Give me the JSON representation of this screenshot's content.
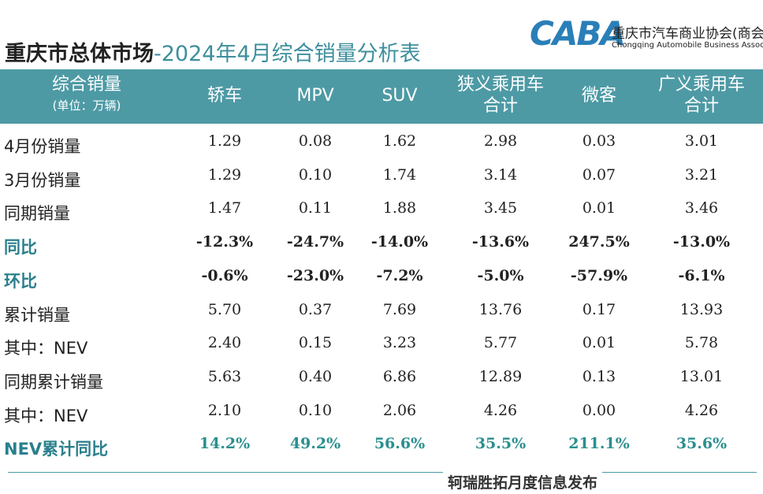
{
  "header": {
    "title_main": "重庆市总体市场",
    "title_sub": "-2024年4月综合销量分析表",
    "logo_mark": "CABA",
    "logo_name": "重庆市汽车商业协会(商会)",
    "logo_en": "Chongqing Automobile Business Association"
  },
  "table": {
    "columns": [
      [
        "综合销量",
        "(单位：万辆)"
      ],
      [
        "轿车"
      ],
      [
        "MPV"
      ],
      [
        "SUV"
      ],
      [
        "狭义乘用车",
        "合计"
      ],
      [
        "微客"
      ],
      [
        "广义乘用车",
        "合计"
      ]
    ],
    "rows": [
      [
        "4月份销量",
        "1.29",
        "0.08",
        "1.62",
        "2.98",
        "0.03",
        "3.01"
      ],
      [
        "3月份销量",
        "1.29",
        "0.10",
        "1.74",
        "3.14",
        "0.07",
        "3.21"
      ],
      [
        "同期销量",
        "1.47",
        "0.11",
        "1.88",
        "3.45",
        "0.01",
        "3.46"
      ],
      [
        "同比",
        "-12.3%",
        "-24.7%",
        "-14.0%",
        "-13.6%",
        "247.5%",
        "-13.0%"
      ],
      [
        "环比",
        "-0.6%",
        "-23.0%",
        "-7.2%",
        "-5.0%",
        "-57.9%",
        "-6.1%"
      ],
      [
        "累计销量",
        "5.70",
        "0.37",
        "7.69",
        "13.76",
        "0.17",
        "13.93"
      ],
      [
        "其中：NEV",
        "2.40",
        "0.15",
        "3.23",
        "5.77",
        "0.01",
        "5.78"
      ],
      [
        "同期累计销量",
        "5.63",
        "0.40",
        "6.86",
        "12.89",
        "0.13",
        "13.01"
      ],
      [
        "其中：NEV",
        "2.10",
        "0.10",
        "2.06",
        "4.26",
        "0.00",
        "4.26"
      ],
      [
        "NEV累计同比",
        "14.2%",
        "49.2%",
        "56.6%",
        "35.5%",
        "211.1%",
        "35.6%"
      ]
    ]
  },
  "footer": {
    "text": "轲瑞胜拓月度信息发布"
  }
}
